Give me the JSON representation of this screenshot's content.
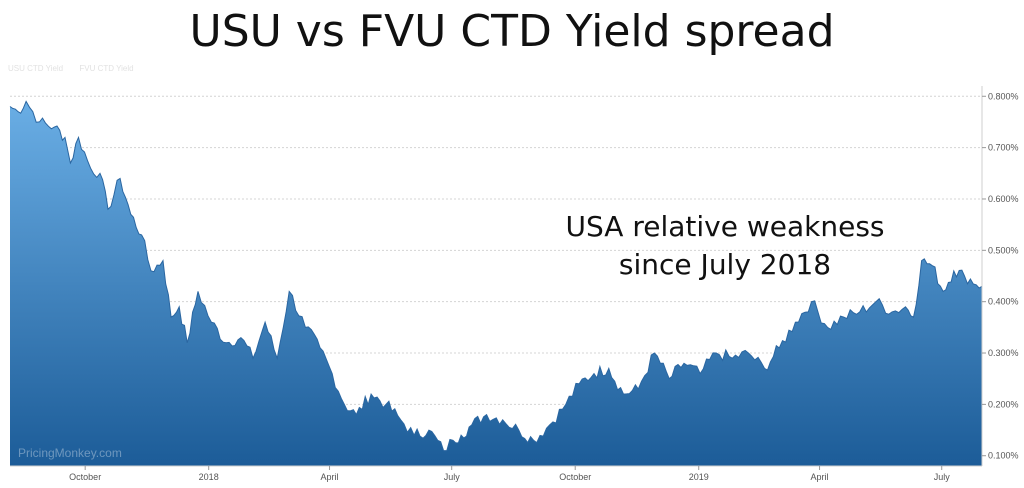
{
  "title": "USU vs FVU CTD Yield spread",
  "annotation": [
    "USA relative weakness",
    "since July 2018"
  ],
  "watermark": "PricingMonkey.com",
  "legend": [
    "USU CTD Yield",
    "FVU CTD Yield"
  ],
  "colors": {
    "area_top": "#6aaee5",
    "area_bottom": "#1c5c98",
    "line": "#2a66a1",
    "grid": "#d4d4d4"
  },
  "chart_data": {
    "type": "area",
    "title": "USU vs FVU CTD Yield spread",
    "x_ticks": [
      "October",
      "2018",
      "April",
      "July",
      "October",
      "2019",
      "April",
      "July"
    ],
    "x_tick_dates": [
      "2017-10-01",
      "2018-01-01",
      "2018-04-01",
      "2018-07-01",
      "2018-10-01",
      "2019-01-01",
      "2019-04-01",
      "2019-07-01"
    ],
    "y_ticks": [
      "0.100%",
      "0.200%",
      "0.300%",
      "0.400%",
      "0.500%",
      "0.600%",
      "0.700%",
      "0.800%"
    ],
    "ylim": [
      0.08,
      0.82
    ],
    "xlim": [
      "2017-08-06",
      "2019-07-31"
    ],
    "grid": true,
    "x": [
      "2017-08-06",
      "2017-08-12",
      "2017-08-18",
      "2017-08-28",
      "2017-09-08",
      "2017-09-16",
      "2017-09-20",
      "2017-09-26",
      "2017-10-05",
      "2017-10-12",
      "2017-10-18",
      "2017-10-27",
      "2017-11-04",
      "2017-11-12",
      "2017-11-19",
      "2017-11-28",
      "2017-12-04",
      "2017-12-10",
      "2017-12-16",
      "2017-12-24",
      "2018-01-03",
      "2018-01-14",
      "2018-01-25",
      "2018-02-03",
      "2018-02-12",
      "2018-02-21",
      "2018-03-02",
      "2018-03-14",
      "2018-03-25",
      "2018-04-03",
      "2018-04-12",
      "2018-04-21",
      "2018-05-02",
      "2018-05-13",
      "2018-05-24",
      "2018-06-03",
      "2018-06-14",
      "2018-06-25",
      "2018-07-02",
      "2018-07-08",
      "2018-07-16",
      "2018-07-27",
      "2018-08-08",
      "2018-08-20",
      "2018-08-31",
      "2018-09-12",
      "2018-09-24",
      "2018-10-04",
      "2018-10-15",
      "2018-10-26",
      "2018-11-06",
      "2018-11-17",
      "2018-11-29",
      "2018-12-10",
      "2018-12-21",
      "2019-01-02",
      "2019-01-14",
      "2019-01-26",
      "2019-02-07",
      "2019-02-19",
      "2019-03-02",
      "2019-03-14",
      "2019-03-26",
      "2019-04-07",
      "2019-04-19",
      "2019-05-01",
      "2019-05-13",
      "2019-05-25",
      "2019-06-04",
      "2019-06-10",
      "2019-06-16",
      "2019-06-24",
      "2019-07-02",
      "2019-07-10",
      "2019-07-18",
      "2019-07-31"
    ],
    "y": [
      0.78,
      0.77,
      0.79,
      0.75,
      0.74,
      0.72,
      0.67,
      0.72,
      0.66,
      0.65,
      0.58,
      0.64,
      0.57,
      0.53,
      0.46,
      0.48,
      0.37,
      0.39,
      0.32,
      0.42,
      0.36,
      0.32,
      0.33,
      0.29,
      0.36,
      0.29,
      0.42,
      0.35,
      0.31,
      0.26,
      0.2,
      0.18,
      0.22,
      0.2,
      0.17,
      0.14,
      0.15,
      0.11,
      0.13,
      0.14,
      0.16,
      0.18,
      0.17,
      0.15,
      0.13,
      0.16,
      0.2,
      0.24,
      0.26,
      0.27,
      0.22,
      0.23,
      0.3,
      0.25,
      0.28,
      0.26,
      0.3,
      0.29,
      0.3,
      0.27,
      0.31,
      0.36,
      0.4,
      0.35,
      0.37,
      0.38,
      0.4,
      0.38,
      0.39,
      0.37,
      0.48,
      0.47,
      0.42,
      0.46,
      0.45,
      0.43
    ]
  }
}
